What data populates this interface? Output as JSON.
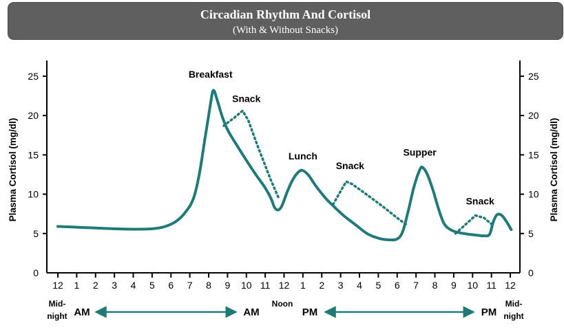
{
  "title": "Circadian Rhythm And Cortisol",
  "subtitle": "(With & Without Snacks)",
  "colors": {
    "curve": "#1f7a78",
    "banner": "#5f5f5f",
    "axis": "#000000"
  },
  "chart_data": {
    "type": "line",
    "ylabel": "Plasma Cortisol (mg/dl)",
    "ylabel_right": "Plasma Cortisol (mg/dl)",
    "ylim": [
      0,
      27
    ],
    "yticks": [
      0,
      5,
      10,
      15,
      20,
      25
    ],
    "xlim": [
      0,
      24
    ],
    "xtick_labels": [
      "12",
      "1",
      "2",
      "3",
      "4",
      "5",
      "6",
      "7",
      "8",
      "9",
      "10",
      "11",
      "12",
      "1",
      "2",
      "3",
      "4",
      "5",
      "6",
      "7",
      "8",
      "9",
      "10",
      "11",
      "12"
    ],
    "grid": false,
    "series": [
      {
        "style": "solid",
        "points": [
          [
            0,
            5.9
          ],
          [
            1,
            5.8
          ],
          [
            2,
            5.7
          ],
          [
            3,
            5.6
          ],
          [
            4,
            5.55
          ],
          [
            5,
            5.6
          ],
          [
            5.7,
            5.9
          ],
          [
            6.3,
            6.6
          ],
          [
            6.8,
            7.8
          ],
          [
            7.2,
            9.5
          ],
          [
            7.5,
            12.5
          ],
          [
            7.8,
            17
          ],
          [
            8.1,
            21.5
          ],
          [
            8.25,
            23.2
          ],
          [
            8.45,
            22
          ],
          [
            8.7,
            20
          ],
          [
            9,
            18.2
          ],
          [
            9.5,
            16.2
          ],
          [
            10,
            14.3
          ],
          [
            10.5,
            12.5
          ],
          [
            11,
            10.8
          ],
          [
            11.3,
            9.5
          ],
          [
            11.5,
            8.3
          ],
          [
            11.7,
            8.0
          ],
          [
            11.9,
            8.6
          ],
          [
            12.2,
            10.5
          ],
          [
            12.5,
            12
          ],
          [
            12.8,
            12.9
          ],
          [
            13.0,
            13.0
          ],
          [
            13.3,
            12.4
          ],
          [
            13.7,
            11
          ],
          [
            14.2,
            9.5
          ],
          [
            14.7,
            8.3
          ],
          [
            15.2,
            7.2
          ],
          [
            15.8,
            6.1
          ],
          [
            16.4,
            5.0
          ],
          [
            17,
            4.4
          ],
          [
            17.5,
            4.2
          ],
          [
            18,
            4.3
          ],
          [
            18.3,
            5.3
          ],
          [
            18.6,
            8
          ],
          [
            18.9,
            11
          ],
          [
            19.2,
            13.1
          ],
          [
            19.35,
            13.4
          ],
          [
            19.6,
            12.5
          ],
          [
            19.9,
            10.5
          ],
          [
            20.2,
            8.1
          ],
          [
            20.5,
            6.2
          ],
          [
            20.9,
            5.4
          ],
          [
            21.3,
            5.1
          ],
          [
            21.8,
            4.9
          ],
          [
            22.2,
            4.8
          ],
          [
            22.6,
            4.7
          ],
          [
            22.9,
            4.9
          ],
          [
            23.1,
            6.5
          ],
          [
            23.3,
            7.4
          ],
          [
            23.55,
            7.3
          ],
          [
            23.8,
            6.5
          ],
          [
            24.05,
            5.5
          ]
        ]
      },
      {
        "style": "dotted",
        "segments": [
          [
            [
              8.8,
              18.7
            ],
            [
              9.4,
              19.8
            ],
            [
              9.8,
              20.6
            ],
            [
              10.1,
              19.4
            ],
            [
              10.6,
              16.1
            ],
            [
              11.3,
              11.8
            ],
            [
              11.75,
              9.3
            ]
          ],
          [
            [
              14.6,
              8.7
            ],
            [
              15.1,
              10.8
            ],
            [
              15.3,
              11.6
            ],
            [
              15.6,
              11.3
            ],
            [
              16.3,
              10.1
            ],
            [
              17.2,
              8.5
            ],
            [
              18.1,
              6.8
            ],
            [
              18.55,
              6.0
            ]
          ],
          [
            [
              21.1,
              5.0
            ],
            [
              21.7,
              6.3
            ],
            [
              22.15,
              7.3
            ],
            [
              22.6,
              7.0
            ],
            [
              23.1,
              6.0
            ]
          ]
        ]
      }
    ],
    "annotations": [
      {
        "text": "Breakfast",
        "x": 8.1,
        "y": 24.8
      },
      {
        "text": "Snack",
        "x": 10.0,
        "y": 21.7
      },
      {
        "text": "Lunch",
        "x": 13.0,
        "y": 14.4
      },
      {
        "text": "Snack",
        "x": 15.5,
        "y": 13.2
      },
      {
        "text": "Supper",
        "x": 19.2,
        "y": 14.9
      },
      {
        "text": "Snack",
        "x": 22.4,
        "y": 8.7
      }
    ],
    "time_labels": {
      "midnight_left": [
        "Mid-",
        "night"
      ],
      "am_left": "AM",
      "am_right": "AM",
      "noon": "Noon",
      "pm_left": "PM",
      "pm_right": "PM",
      "midnight_right": [
        "Mid-",
        "night"
      ]
    }
  }
}
